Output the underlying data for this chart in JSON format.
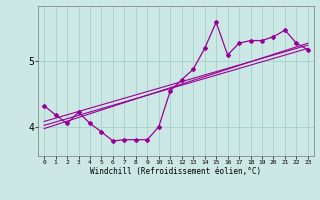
{
  "xlabel": "Windchill (Refroidissement éolien,°C)",
  "bg_color": "#cce8e4",
  "grid_color": "#aad4ce",
  "line_color": "#990099",
  "xlim": [
    -0.5,
    23.5
  ],
  "ylim": [
    3.55,
    5.85
  ],
  "yticks": [
    4,
    5
  ],
  "xticks": [
    0,
    1,
    2,
    3,
    4,
    5,
    6,
    7,
    8,
    9,
    10,
    11,
    12,
    13,
    14,
    15,
    16,
    17,
    18,
    19,
    20,
    21,
    22,
    23
  ],
  "main_line_x": [
    0,
    1,
    2,
    3,
    4,
    5,
    6,
    7,
    8,
    9,
    10,
    11,
    12,
    13,
    14,
    15,
    16,
    17,
    18,
    19,
    20,
    21,
    22,
    23
  ],
  "main_line_y": [
    4.32,
    4.18,
    4.05,
    4.22,
    4.05,
    3.92,
    3.78,
    3.8,
    3.8,
    3.8,
    4.0,
    4.55,
    4.72,
    4.88,
    5.2,
    5.6,
    5.1,
    5.28,
    5.32,
    5.32,
    5.38,
    5.48,
    5.28,
    5.18
  ],
  "trend1_x": [
    0,
    23
  ],
  "trend1_y": [
    4.08,
    5.25
  ],
  "trend2_x": [
    0,
    23
  ],
  "trend2_y": [
    4.02,
    5.2
  ],
  "trend3_x": [
    0,
    23
  ],
  "trend3_y": [
    3.97,
    5.28
  ]
}
